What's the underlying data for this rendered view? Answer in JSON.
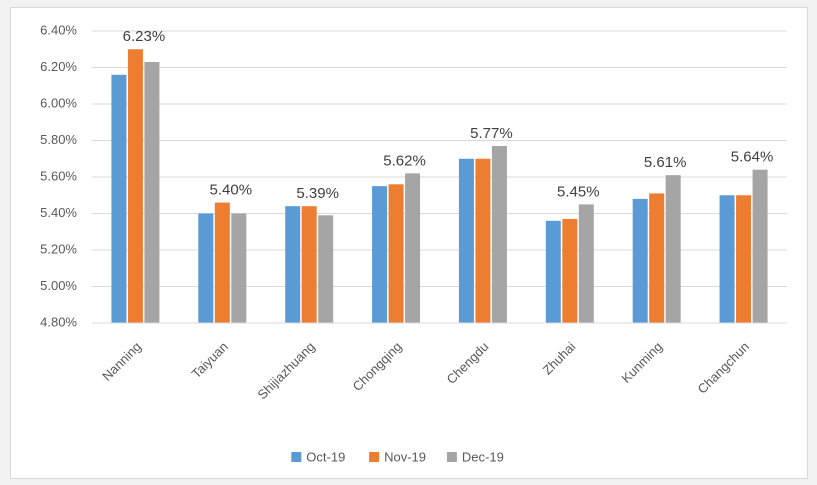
{
  "chart_data": {
    "type": "bar",
    "categories": [
      "Nanning",
      "Taiyuan",
      "Shijiazhuang",
      "Chongqing",
      "Chengdu",
      "Zhuhai",
      "Kunming",
      "Changchun"
    ],
    "series": [
      {
        "name": "Oct-19",
        "color": "#5b9bd5",
        "values": [
          6.16,
          5.4,
          5.44,
          5.55,
          5.7,
          5.36,
          5.48,
          5.5
        ]
      },
      {
        "name": "Nov-19",
        "color": "#ed7d31",
        "values": [
          6.3,
          5.46,
          5.44,
          5.56,
          5.7,
          5.37,
          5.51,
          5.5
        ]
      },
      {
        "name": "Dec-19",
        "color": "#a5a5a5",
        "values": [
          6.23,
          5.4,
          5.39,
          5.62,
          5.77,
          5.45,
          5.61,
          5.64
        ],
        "value_labels": [
          "6.23%",
          "5.40%",
          "5.39%",
          "5.62%",
          "5.77%",
          "5.45%",
          "5.61%",
          "5.64%"
        ]
      }
    ],
    "ylim": [
      4.8,
      6.4
    ],
    "yticks": [
      {
        "value": 4.8,
        "label": "4.80%"
      },
      {
        "value": 5.0,
        "label": "5.00%"
      },
      {
        "value": 5.2,
        "label": "5.20%"
      },
      {
        "value": 5.4,
        "label": "5.40%"
      },
      {
        "value": 5.6,
        "label": "5.60%"
      },
      {
        "value": 5.8,
        "label": "5.80%"
      },
      {
        "value": 6.0,
        "label": "6.00%"
      },
      {
        "value": 6.2,
        "label": "6.20%"
      },
      {
        "value": 6.4,
        "label": "6.40%"
      }
    ],
    "grid": true,
    "legend": "bottom"
  }
}
